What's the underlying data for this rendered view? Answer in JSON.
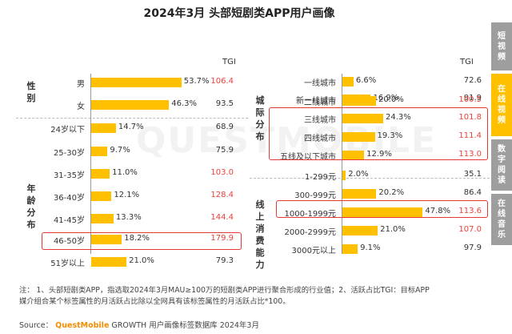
{
  "title": "2024年3月 头部短剧类APP用户画像",
  "watermark": "QUESTMOBILE",
  "tgi_header": "TGI",
  "side_tabs": [
    {
      "label": "短视频",
      "active": false
    },
    {
      "label": "在线视频",
      "active": true
    },
    {
      "label": "数字阅读",
      "active": false
    },
    {
      "label": "在线音乐",
      "active": false
    }
  ],
  "colors": {
    "bar": "#ffc000",
    "tgi_high": "#e8423c",
    "highlight_box": "#e53935",
    "tab_inactive": "#9e9e9e",
    "tab_active": "#ffc000"
  },
  "left_groups": [
    {
      "label": "性别"
    },
    {
      "label": "年龄分布"
    }
  ],
  "right_groups": [
    {
      "label": "城际分布"
    },
    {
      "label": "线上消费能力"
    }
  ],
  "chart_data": [
    {
      "type": "bar",
      "orientation": "horizontal",
      "panel": "left",
      "value_unit": "%",
      "categories": [
        "男",
        "女",
        "24岁以下",
        "25-30岁",
        "31-35岁",
        "36-40岁",
        "41-45岁",
        "46-50岁",
        "51岁以上"
      ],
      "groups": [
        {
          "label": "性别",
          "categories": [
            "男",
            "女"
          ]
        },
        {
          "label": "年龄分布",
          "categories": [
            "24岁以下",
            "25-30岁",
            "31-35岁",
            "36-40岁",
            "41-45岁",
            "46-50岁",
            "51岁以上"
          ]
        }
      ],
      "values": [
        53.7,
        46.3,
        14.7,
        9.7,
        11.0,
        12.1,
        13.3,
        18.2,
        21.0
      ],
      "value_labels": [
        "53.7%",
        "46.3%",
        "14.7%",
        "9.7%",
        "11.0%",
        "12.1%",
        "13.3%",
        "18.2%",
        "21.0%"
      ],
      "tgi": [
        "106.4",
        "93.5",
        "68.9",
        "75.9",
        "103.0",
        "128.4",
        "144.4",
        "179.9",
        "79.3"
      ],
      "highlighted": [
        "51岁以上"
      ]
    },
    {
      "type": "bar",
      "orientation": "horizontal",
      "panel": "right",
      "value_unit": "%",
      "categories": [
        "一线城市",
        "新一线城市",
        "二线城市",
        "三线城市",
        "四线城市",
        "五线及以下城市",
        "1-299元",
        "300-999元",
        "1000-1999元",
        "2000-2999元",
        "3000元以上"
      ],
      "groups": [
        {
          "label": "城际分布",
          "categories": [
            "一线城市",
            "新一线城市",
            "二线城市",
            "三线城市",
            "四线城市",
            "五线及以下城市"
          ]
        },
        {
          "label": "线上消费能力",
          "categories": [
            "1-299元",
            "300-999元",
            "1000-1999元",
            "2000-2999元",
            "3000元以上"
          ]
        }
      ],
      "values": [
        6.6,
        16.9,
        20.0,
        24.3,
        19.3,
        12.9,
        2.0,
        20.2,
        47.8,
        21.0,
        9.1
      ],
      "value_labels": [
        "6.6%",
        "16.9%",
        "20.0%",
        "24.3%",
        "19.3%",
        "12.9%",
        "2.0%",
        "20.2%",
        "47.8%",
        "21.0%",
        "9.1%"
      ],
      "tgi": [
        "72.6",
        "91.9",
        "100.5",
        "101.8",
        "111.4",
        "113.0",
        "35.1",
        "86.4",
        "113.6",
        "107.0",
        "97.9"
      ],
      "highlighted": [
        "三线城市",
        "四线城市",
        "五线及以下城市",
        "1000-1999元"
      ]
    }
  ],
  "notes": [
    "注： 1、头部短剧类APP，指选取2024年3月MAU≥100万的短剧类APP进行聚合形成的行业值；2、活跃占比TGI：目标APP",
    "媒介组合某个标签属性的月活跃占比除以全网具有该标签属性的月活跃占比*100。"
  ],
  "source": {
    "prefix": "Source：",
    "brand": "QuestMobile",
    "suffix": "GROWTH 用户画像标签数据库 2024年3月"
  }
}
